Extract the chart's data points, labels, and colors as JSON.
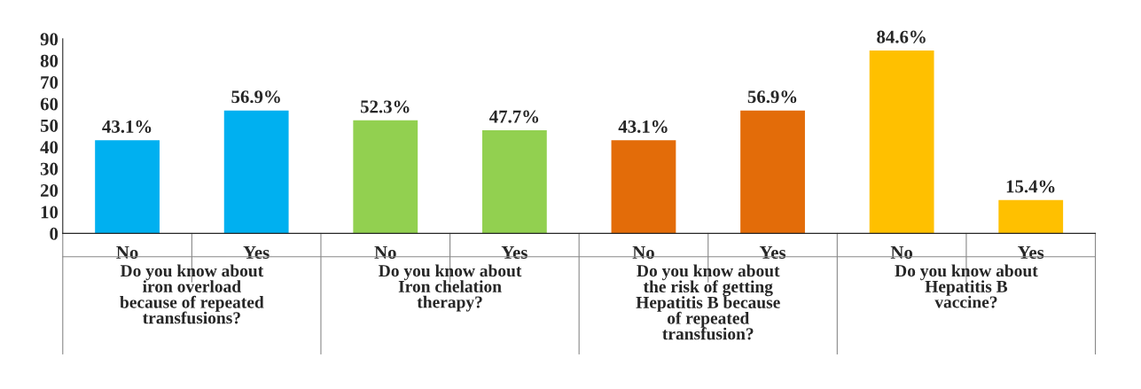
{
  "chart_data": {
    "type": "bar",
    "categories": [
      "No",
      "Yes",
      "No",
      "Yes",
      "No",
      "Yes",
      "No",
      "Yes"
    ],
    "values": [
      43.1,
      56.9,
      52.3,
      47.7,
      43.1,
      56.9,
      84.6,
      15.4
    ],
    "colors": [
      "#00b0f0",
      "#00b0f0",
      "#92d050",
      "#92d050",
      "#e36c09",
      "#e36c09",
      "#ffc000",
      "#ffc000"
    ],
    "value_labels": [
      "43.1%",
      "56.9%",
      "52.3%",
      "47.7%",
      "43.1%",
      "56.9%",
      "84.6%",
      "15.4%"
    ],
    "ylim": [
      0,
      90
    ],
    "yticks": [
      0,
      10,
      20,
      30,
      40,
      50,
      60,
      70,
      80,
      90
    ],
    "grid": false,
    "legend": false,
    "annotations": [
      "Do you know about\niron overload\nbecause of repeated\ntransfusions?",
      "Do you know about\nIron chelation\ntherapy?",
      "Do you know about\nthe risk of getting\nHepatitis B because\nof repeated\ntransfusion?",
      "Do you know about\nHepatitis B\nvaccine?"
    ]
  }
}
